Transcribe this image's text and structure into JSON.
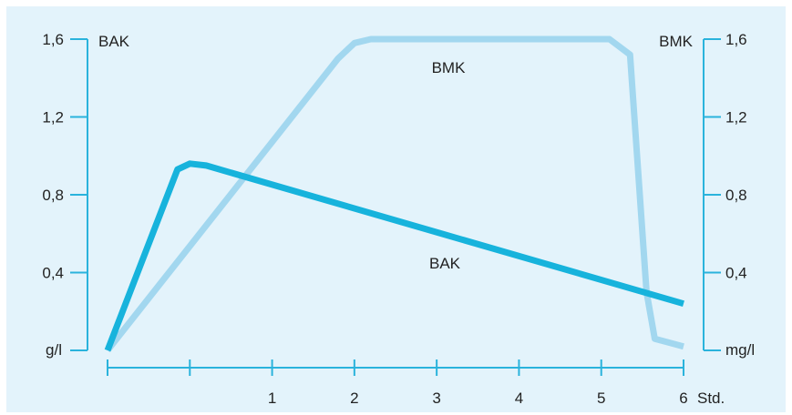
{
  "colors": {
    "background": "#e3f3fb",
    "axis": "#2ab3dc",
    "bak_line": "#17b3dc",
    "bmk_line": "#a2d7ef",
    "text": "#222222"
  },
  "chart_data": {
    "type": "line",
    "left_axis": {
      "title": "BAK",
      "unit": "g/l",
      "ticks": [
        0.4,
        0.8,
        1.2,
        1.6
      ],
      "tick_labels": [
        "0,4",
        "0,8",
        "1,2",
        "1,6"
      ],
      "ylim": [
        0,
        1.6
      ]
    },
    "right_axis": {
      "title": "BMK",
      "unit": "mg/l",
      "ticks": [
        0.4,
        0.8,
        1.2,
        1.6
      ],
      "tick_labels": [
        "0,4",
        "0,8",
        "1,2",
        "1,6"
      ],
      "ylim": [
        0,
        1.6
      ]
    },
    "x_axis": {
      "unit": "Std.",
      "xlim": [
        0,
        7
      ],
      "ticks": [
        0,
        1,
        2,
        3,
        4,
        5,
        6,
        7
      ],
      "tick_labels": [
        "",
        "",
        "1",
        "2",
        "3",
        "4",
        "5",
        "6"
      ]
    },
    "series": [
      {
        "name": "BAK",
        "axis": "left",
        "x": [
          0,
          0.85,
          1.0,
          1.2,
          7.0
        ],
        "y": [
          0.0,
          0.93,
          0.96,
          0.95,
          0.24
        ]
      },
      {
        "name": "BMK",
        "axis": "right",
        "x": [
          0,
          2.8,
          3.0,
          3.2,
          6.1,
          6.35,
          6.55,
          6.65,
          7.0
        ],
        "y": [
          0.0,
          1.5,
          1.58,
          1.6,
          1.6,
          1.52,
          0.3,
          0.06,
          0.02
        ]
      }
    ]
  }
}
